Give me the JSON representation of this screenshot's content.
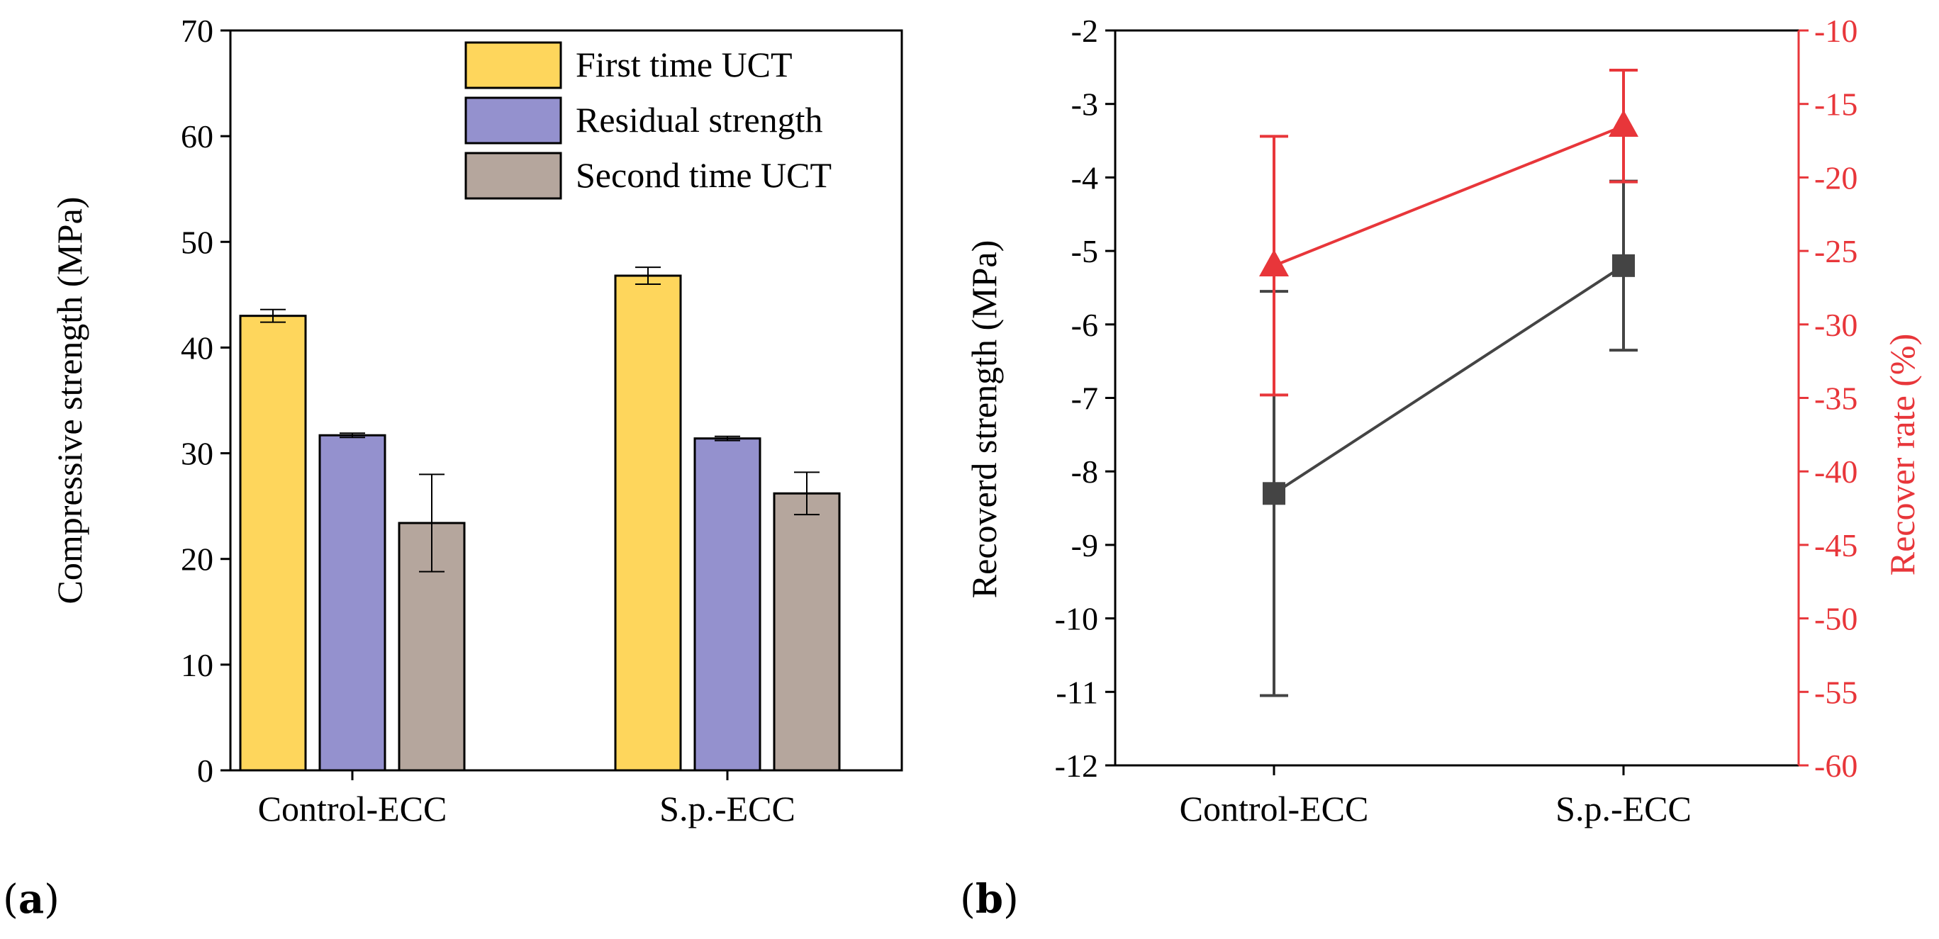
{
  "colors": {
    "first": "#FED65C",
    "residual": "#9491CE",
    "second": "#B5A69D",
    "black_series": "#444444",
    "red_series": "#E8363A"
  },
  "chart_data": [
    {
      "panel": "(a)",
      "panel_letter": "a",
      "type": "bar",
      "title": "",
      "xlabel": "",
      "ylabel": "Compressive strength (MPa)",
      "ylim": [
        0,
        70
      ],
      "yticks": [
        0,
        10,
        20,
        30,
        40,
        50,
        60,
        70
      ],
      "categories": [
        "Control-ECC",
        "S.p.-ECC"
      ],
      "legend_position": "top-right",
      "series": [
        {
          "key": "first",
          "name": "First time UCT",
          "values": [
            43.0,
            46.8
          ],
          "errors": [
            0.6,
            0.8
          ]
        },
        {
          "key": "residual",
          "name": "Residual strength",
          "values": [
            31.7,
            31.4
          ],
          "errors": [
            0.2,
            0.2
          ]
        },
        {
          "key": "second",
          "name": "Second time UCT",
          "values": [
            23.4,
            26.2
          ],
          "errors": [
            4.6,
            2.0
          ]
        }
      ]
    },
    {
      "panel": "(b)",
      "panel_letter": "b",
      "type": "line",
      "title": "",
      "xlabel": "",
      "categories": [
        "Control-ECC",
        "S.p.-ECC"
      ],
      "left_axis": {
        "label": "Recoverd strength (MPa)",
        "ylim": [
          -12,
          -2
        ],
        "ticks": [
          -12,
          -11,
          -10,
          -9,
          -8,
          -7,
          -6,
          -5,
          -4,
          -3,
          -2
        ],
        "series": {
          "name": "Recovered strength",
          "marker": "square",
          "values": [
            -8.3,
            -5.2
          ],
          "errors": [
            2.75,
            1.15
          ]
        }
      },
      "right_axis": {
        "label": "Recover rate (%)",
        "ylim": [
          -60,
          -10
        ],
        "ticks": [
          -60,
          -55,
          -50,
          -45,
          -40,
          -35,
          -30,
          -25,
          -20,
          -15,
          -10
        ],
        "series": {
          "name": "Recover rate",
          "marker": "triangle",
          "values": [
            -26.0,
            -16.5
          ],
          "errors": [
            8.8,
            3.8
          ]
        }
      }
    }
  ]
}
